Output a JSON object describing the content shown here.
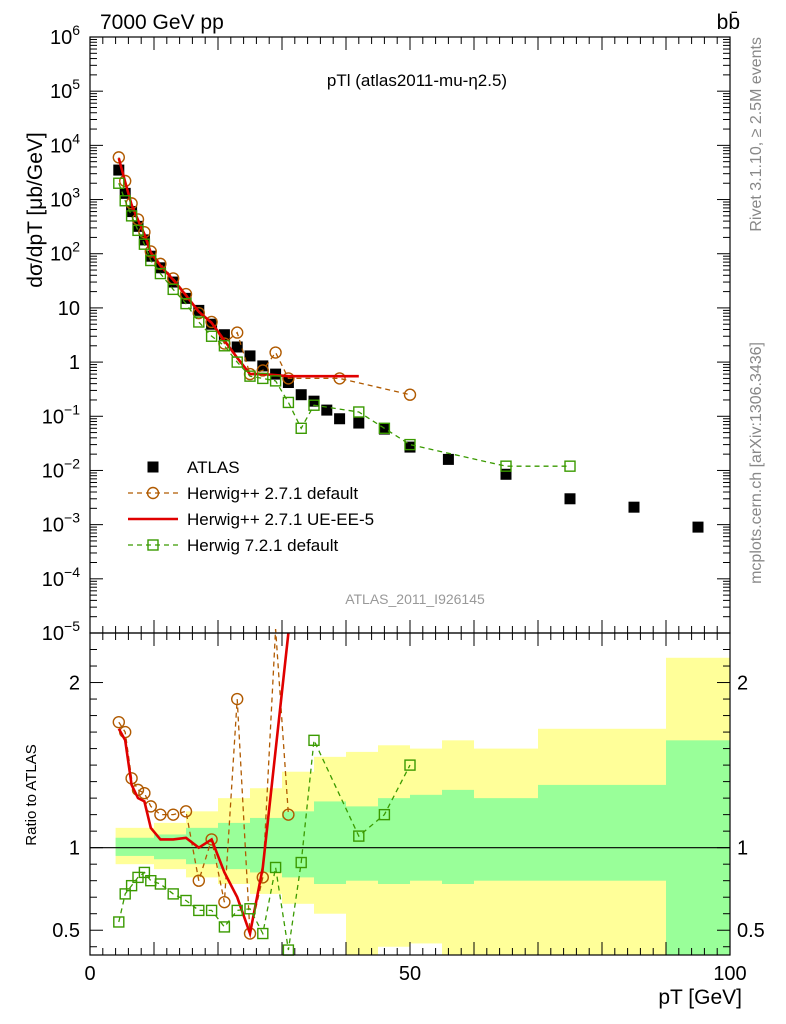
{
  "header": {
    "left": "7000 GeV pp",
    "right": "bb̄"
  },
  "side_labels": {
    "rivet": "Rivet 3.1.10, ≥ 2.5M events",
    "mcplots": "mcplots.cern.ch [arXiv:1306.3436]"
  },
  "chart_data": {
    "type": "scatter",
    "title": "pTl (atlas2011-mu-η2.5)",
    "analysis": "ATLAS_2011_I926145",
    "xlabel": "pT [GeV]",
    "xlim": [
      0,
      100
    ],
    "x_ticks": [
      "0",
      "50",
      "100"
    ],
    "main_panel": {
      "ylabel": "dσ/dpT [μb/GeV]",
      "log_scale": true,
      "ylim": [
        1e-05,
        1000000.0
      ],
      "y_tick_labels": [
        "10^-5",
        "10^-4",
        "10^-3",
        "10^-2",
        "10^-1",
        "1",
        "10",
        "10^2",
        "10^3",
        "10^4",
        "10^5",
        "10^6"
      ]
    },
    "ratio_panel": {
      "ylabel": "Ratio to ATLAS",
      "ylim": [
        0.35,
        2.3
      ],
      "y_tick_labels": [
        "0.5",
        "1",
        "2"
      ],
      "bands": [
        {
          "x0": 4,
          "x1": 10,
          "y1_lo": 0.95,
          "y1_hi": 1.06,
          "y2_lo": 0.9,
          "y2_hi": 1.12
        },
        {
          "x0": 10,
          "x1": 15,
          "y1_lo": 0.93,
          "y1_hi": 1.08,
          "y2_lo": 0.87,
          "y2_hi": 1.15
        },
        {
          "x0": 15,
          "x1": 20,
          "y1_lo": 0.9,
          "y1_hi": 1.12,
          "y2_lo": 0.82,
          "y2_hi": 1.22
        },
        {
          "x0": 20,
          "x1": 25,
          "y1_lo": 0.87,
          "y1_hi": 1.15,
          "y2_lo": 0.78,
          "y2_hi": 1.3
        },
        {
          "x0": 25,
          "x1": 30,
          "y1_lo": 0.85,
          "y1_hi": 1.18,
          "y2_lo": 0.72,
          "y2_hi": 1.36
        },
        {
          "x0": 30,
          "x1": 35,
          "y1_lo": 0.82,
          "y1_hi": 1.22,
          "y2_lo": 0.66,
          "y2_hi": 1.46
        },
        {
          "x0": 35,
          "x1": 40,
          "y1_lo": 0.78,
          "y1_hi": 1.28,
          "y2_lo": 0.6,
          "y2_hi": 1.55
        },
        {
          "x0": 40,
          "x1": 45,
          "y1_lo": 0.8,
          "y1_hi": 1.25,
          "y2_lo": 0.35,
          "y2_hi": 1.58
        },
        {
          "x0": 45,
          "x1": 50,
          "y1_lo": 0.78,
          "y1_hi": 1.3,
          "y2_lo": 0.4,
          "y2_hi": 1.62
        },
        {
          "x0": 50,
          "x1": 55,
          "y1_lo": 0.8,
          "y1_hi": 1.32,
          "y2_lo": 0.42,
          "y2_hi": 1.6
        },
        {
          "x0": 55,
          "x1": 60,
          "y1_lo": 0.78,
          "y1_hi": 1.35,
          "y2_lo": 0.35,
          "y2_hi": 1.65
        },
        {
          "x0": 60,
          "x1": 70,
          "y1_lo": 0.8,
          "y1_hi": 1.3,
          "y2_lo": 0.35,
          "y2_hi": 1.6
        },
        {
          "x0": 70,
          "x1": 90,
          "y1_lo": 0.8,
          "y1_hi": 1.38,
          "y2_lo": 0.35,
          "y2_hi": 1.72
        },
        {
          "x0": 90,
          "x1": 100,
          "y1_lo": 0.35,
          "y1_hi": 1.65,
          "y2_lo": 0.35,
          "y2_hi": 2.15
        }
      ]
    },
    "legend_position": "lower-left",
    "series": [
      {
        "name": "ATLAS",
        "color": "#000000",
        "marker": "filled-square",
        "x": [
          4.5,
          5.5,
          6.5,
          7.5,
          8.5,
          9.5,
          11,
          13,
          15,
          17,
          19,
          21,
          23,
          25,
          27,
          29,
          31,
          33,
          35,
          37,
          39,
          42,
          46,
          50,
          56,
          65,
          75,
          85,
          95
        ],
        "y": [
          3500,
          1300,
          600,
          320,
          180,
          90,
          55,
          30,
          15,
          9,
          5,
          3.2,
          1.9,
          1.3,
          0.85,
          0.6,
          0.42,
          0.25,
          0.19,
          0.13,
          0.09,
          0.075,
          0.058,
          0.027,
          0.016,
          0.0085,
          0.003,
          0.0021,
          0.0009
        ]
      },
      {
        "name": "Herwig++ 2.7.1 default",
        "color": "#b05a00",
        "marker": "open-circle",
        "line": "dashed",
        "x": [
          4.5,
          5.5,
          6.5,
          7.5,
          8.5,
          9.5,
          11,
          13,
          15,
          17,
          19,
          21,
          23,
          25,
          27,
          29,
          31,
          39,
          50
        ],
        "y": [
          6000,
          2200,
          850,
          430,
          250,
          110,
          65,
          35,
          18,
          8,
          5.5,
          2.2,
          3.5,
          0.6,
          0.7,
          1.5,
          0.5,
          0.5,
          0.25
        ],
        "ratio": [
          1.76,
          1.7,
          1.42,
          1.35,
          1.33,
          1.25,
          1.2,
          1.2,
          1.22,
          0.8,
          1.05,
          0.67,
          1.9,
          0.48,
          0.82,
          2.5,
          1.2
        ]
      },
      {
        "name": "Herwig++ 2.7.1 UE-EE-5",
        "color": "#e00000",
        "marker": "none",
        "line": "solid",
        "x": [
          4.5,
          5.5,
          6.5,
          7.5,
          8.5,
          9.5,
          11,
          13,
          15,
          17,
          19,
          21,
          23,
          25,
          27,
          31,
          42
        ],
        "y": [
          5800,
          2100,
          800,
          420,
          230,
          105,
          60,
          33,
          17,
          8.5,
          5.3,
          2.5,
          1.2,
          0.6,
          0.6,
          0.55,
          0.55
        ],
        "ratio": [
          1.72,
          1.65,
          1.38,
          1.3,
          1.28,
          1.12,
          1.05,
          1.05,
          1.06,
          1.0,
          1.05,
          0.85,
          0.7,
          0.48,
          0.88,
          2.3
        ]
      },
      {
        "name": "Herwig 7.2.1 default",
        "color": "#3a9a00",
        "marker": "open-square",
        "line": "dashed",
        "x": [
          4.5,
          5.5,
          6.5,
          7.5,
          8.5,
          9.5,
          11,
          13,
          15,
          17,
          19,
          21,
          23,
          25,
          27,
          29,
          31,
          33,
          35,
          42,
          46,
          50,
          65,
          75
        ],
        "y": [
          2000,
          950,
          500,
          270,
          150,
          75,
          43,
          22,
          12,
          5.5,
          3,
          2,
          1,
          0.55,
          0.5,
          0.45,
          0.18,
          0.06,
          0.16,
          0.12,
          0.06,
          0.03,
          0.012,
          0.012
        ],
        "ratio": [
          0.55,
          0.72,
          0.77,
          0.82,
          0.85,
          0.8,
          0.78,
          0.72,
          0.68,
          0.62,
          0.62,
          0.52,
          0.62,
          0.63,
          0.48,
          0.88,
          0.38,
          0.91,
          1.65,
          1.07,
          1.2,
          1.5
        ]
      }
    ]
  }
}
